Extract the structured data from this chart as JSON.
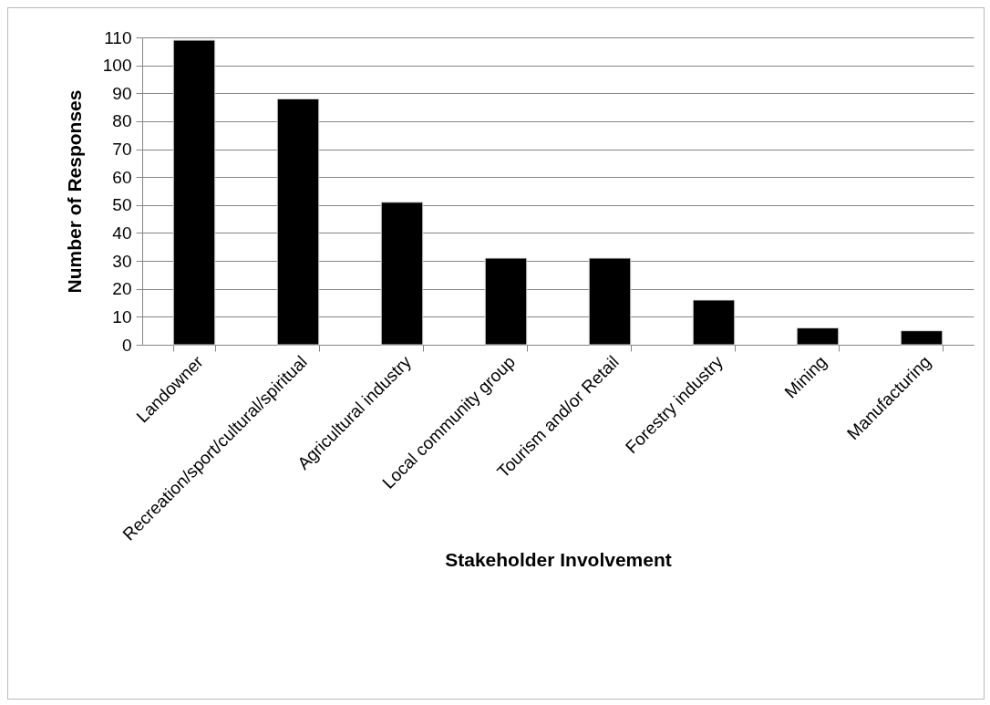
{
  "chart_data": {
    "type": "bar",
    "xlabel": "Stakeholder Involvement",
    "ylabel": "Number of Responses",
    "categories": [
      "Landowner",
      "Recreation/sport/cultural/spiritual",
      "Agricultural industry",
      "Local community group",
      "Tourism and/or Retail",
      "Forestry industry",
      "Mining",
      "Manufacturing"
    ],
    "values": [
      109,
      88,
      51,
      31,
      31,
      16,
      6,
      5
    ],
    "color": "#000000",
    "ylim": [
      0,
      110
    ],
    "yticks": [
      0,
      10,
      20,
      30,
      40,
      50,
      60,
      70,
      80,
      90,
      100,
      110
    ],
    "grid": "y"
  }
}
